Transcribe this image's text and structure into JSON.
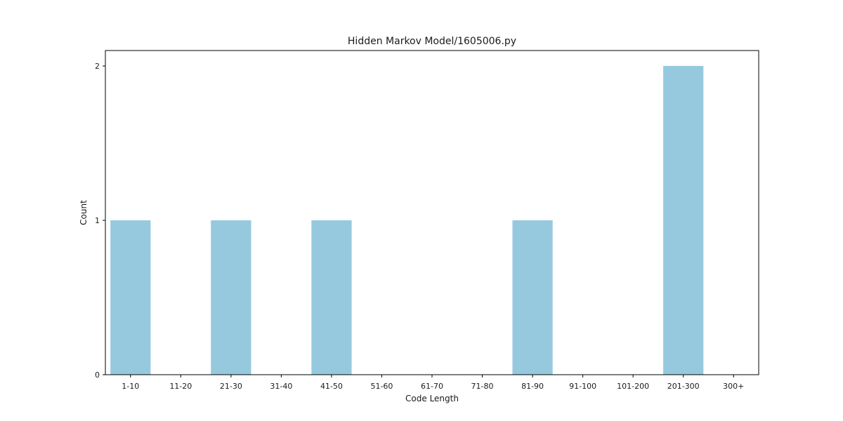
{
  "chart_data": {
    "type": "bar",
    "title": "Hidden Markov Model/1605006.py",
    "xlabel": "Code Length",
    "ylabel": "Count",
    "categories": [
      "1-10",
      "11-20",
      "21-30",
      "31-40",
      "41-50",
      "51-60",
      "61-70",
      "71-80",
      "81-90",
      "91-100",
      "101-200",
      "201-300",
      "300+"
    ],
    "values": [
      1,
      0,
      1,
      0,
      1,
      0,
      0,
      0,
      1,
      0,
      0,
      2,
      0
    ],
    "yticks": [
      "0",
      "1",
      "2"
    ],
    "ylim": [
      0,
      2.1
    ],
    "grid": false,
    "legend": "none",
    "bar_color": "#96c9de"
  }
}
